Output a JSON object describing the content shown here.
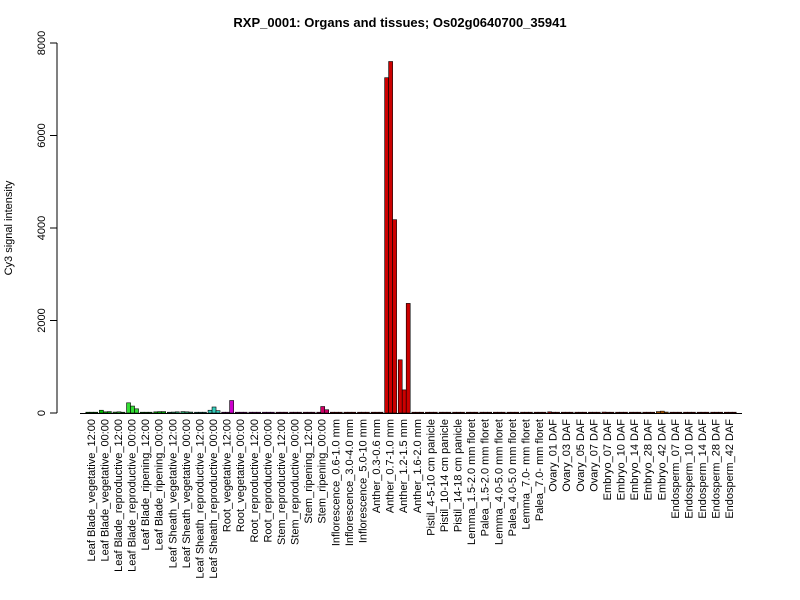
{
  "chart_data": {
    "type": "bar",
    "title": "RXP_0001: Organs and tissues; Os02g0640700_35941",
    "xlabel": "",
    "ylabel": "Cy3 signal intensity",
    "ylim": [
      0,
      8000
    ],
    "yticks": [
      0,
      2000,
      4000,
      6000,
      8000
    ],
    "grid": false,
    "legend": "none",
    "category_labels": [
      "Leaf Blade_vegetative_12:00",
      "Leaf Blade_vegetative_00:00",
      "Leaf Blade_reproductive_12:00",
      "Leaf Blade_reproductive_00:00",
      "Leaf Blade_ripening_12:00",
      "Leaf Blade_ripening_00:00",
      "Leaf Sheath_vegetative_12:00",
      "Leaf Sheath_vegetative_00:00",
      "Leaf Sheath_reproductive_12:00",
      "Leaf Sheath_reproductive_00:00",
      "Root_vegetative_12:00",
      "Root_vegetative_00:00",
      "Root_reproductive_12:00",
      "Root_reproductive_00:00",
      "Stem_reproductive_12:00",
      "Stem_reproductive_00:00",
      "Stem_ripening_12:00",
      "Stem_ripening_00:00",
      "Inflorescence_0.6-1.0 mm",
      "Inflorescence_3.0-4.0 mm",
      "Inflorescence_5.0-10 mm",
      "Anther_0.3-0.6 mm",
      "Anther_0.7-1.0 mm",
      "Anther_1.2-1.5 mm",
      "Anther_1.6-2.0 mm",
      "Pistil_4-5-10 cm panicle",
      "Pistil_10-14 cm panicle",
      "Pistil_14-18 cm panicle",
      "Lemma_1.5-2.0 mm floret",
      "Palea_1.5-2.0 mm floret",
      "Lemma_4.0-5.0 mm floret",
      "Palea_4.0-5.0 mm floret",
      "Lemma_7.0- mm floret",
      "Palea_7.0- mm floret",
      "Ovary_01 DAF",
      "Ovary_03 DAF",
      "Ovary_05 DAF",
      "Ovary_07 DAF",
      "Embryo_07 DAF",
      "Embryo_10 DAF",
      "Embryo_14 DAF",
      "Embryo_28 DAF",
      "Embryo_42 DAF",
      "Endosperm_07 DAF",
      "Endosperm_10 DAF",
      "Endosperm_14 DAF",
      "Endosperm_28 DAF",
      "Endosperm_42 DAF"
    ],
    "category_colors": [
      "#00cc00",
      "#00cc00",
      "#33dd33",
      "#33dd33",
      "#00cc00",
      "#00cc00",
      "#33cc88",
      "#33cc88",
      "#33ccbb",
      "#33ccbb",
      "#cc00cc",
      "#cc00cc",
      "#cc00cc",
      "#cc00cc",
      "#cc0066",
      "#cc0066",
      "#cc0066",
      "#cc0066",
      "#cc0000",
      "#cc0000",
      "#cc0000",
      "#cc0000",
      "#cc0000",
      "#cc0000",
      "#cc0000",
      "#cc0000",
      "#cc0000",
      "#cc0000",
      "#cc0000",
      "#cc0000",
      "#cc0000",
      "#cc0000",
      "#cc0000",
      "#cc0000",
      "#cc0000",
      "#cc0000",
      "#cc0000",
      "#cc0000",
      "#cc0000",
      "#cc0000",
      "#cc0000",
      "#cc0000",
      "#cc6600",
      "#cc0000",
      "#cc0000",
      "#cc0000",
      "#cc0000",
      "#cc0000"
    ],
    "replicates": [
      [
        5,
        5,
        5
      ],
      [
        60,
        25,
        30
      ],
      [
        20,
        25,
        15
      ],
      [
        220,
        150,
        90
      ],
      [
        5,
        5,
        5
      ],
      [
        25,
        30,
        30
      ],
      [
        15,
        20,
        25
      ],
      [
        30,
        25,
        20
      ],
      [
        5,
        5,
        5
      ],
      [
        60,
        130,
        50
      ],
      [
        5,
        5,
        270
      ],
      [
        5,
        5,
        5
      ],
      [
        5,
        5,
        5
      ],
      [
        5,
        5,
        5
      ],
      [
        5,
        5,
        5
      ],
      [
        5,
        5,
        5
      ],
      [
        5,
        5,
        5
      ],
      [
        5,
        140,
        70
      ],
      [
        5,
        5,
        5
      ],
      [
        5,
        5,
        5
      ],
      [
        5,
        5,
        5
      ],
      [
        5,
        5,
        5
      ],
      [
        7250,
        7600,
        4180
      ],
      [
        1150,
        500,
        2370
      ],
      [
        5,
        5,
        5
      ],
      [
        5,
        5,
        5
      ],
      [
        5,
        5,
        5
      ],
      [
        5,
        5,
        5
      ],
      [
        5,
        5,
        5
      ],
      [
        5,
        5,
        5
      ],
      [
        5,
        5,
        5
      ],
      [
        5,
        5,
        5
      ],
      [
        5,
        5,
        5
      ],
      [
        5,
        5,
        5
      ],
      [
        25,
        15,
        10
      ],
      [
        5,
        5,
        5
      ],
      [
        5,
        5,
        5
      ],
      [
        5,
        5,
        5
      ],
      [
        20,
        15,
        10
      ],
      [
        5,
        5,
        5
      ],
      [
        5,
        5,
        5
      ],
      [
        5,
        5,
        5
      ],
      [
        30,
        40,
        20
      ],
      [
        5,
        5,
        5
      ],
      [
        5,
        5,
        5
      ],
      [
        5,
        5,
        5
      ],
      [
        5,
        5,
        5
      ],
      [
        5,
        5,
        5
      ]
    ]
  }
}
